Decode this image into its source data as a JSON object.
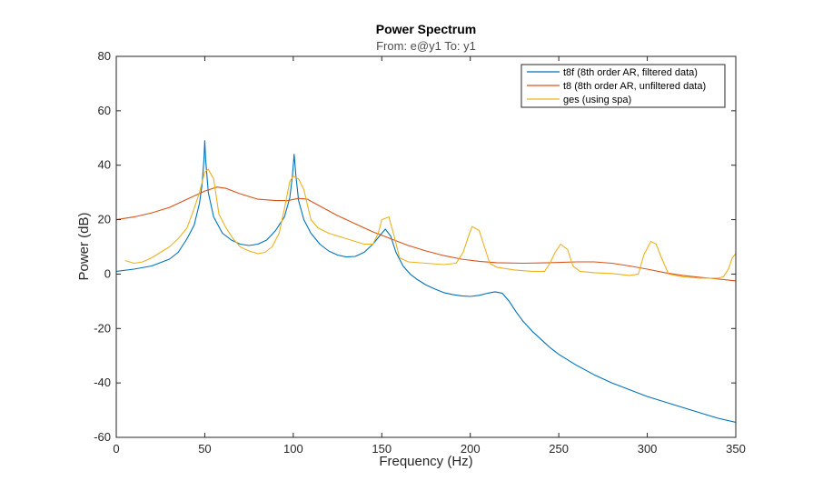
{
  "chart_data": {
    "type": "line",
    "title": "Power Spectrum",
    "subtitle": "From: e@y1  To: y1",
    "xlabel": "Frequency  (Hz)",
    "ylabel": "Power (dB)",
    "xlim": [
      0,
      350
    ],
    "ylim": [
      -60,
      80
    ],
    "xticks": [
      0,
      50,
      100,
      150,
      200,
      250,
      300,
      350
    ],
    "yticks": [
      -60,
      -40,
      -20,
      0,
      20,
      40,
      60,
      80
    ],
    "grid": false,
    "legend_position": "top-right",
    "series": [
      {
        "name": "t8f (8th order AR, filtered data)",
        "color": "#0072BD",
        "points": [
          [
            0,
            1
          ],
          [
            10,
            1.8
          ],
          [
            20,
            3
          ],
          [
            30,
            5.5
          ],
          [
            35,
            8
          ],
          [
            40,
            13
          ],
          [
            44,
            18
          ],
          [
            47,
            26
          ],
          [
            48.5,
            33
          ],
          [
            49.5,
            42
          ],
          [
            50,
            49
          ],
          [
            50.5,
            42
          ],
          [
            52,
            30
          ],
          [
            55,
            21
          ],
          [
            60,
            15
          ],
          [
            65,
            12.5
          ],
          [
            70,
            11
          ],
          [
            75,
            10.5
          ],
          [
            80,
            11
          ],
          [
            85,
            12.5
          ],
          [
            90,
            16
          ],
          [
            95,
            21
          ],
          [
            98,
            28
          ],
          [
            99.5,
            36
          ],
          [
            100.5,
            44
          ],
          [
            101.5,
            36
          ],
          [
            103,
            27
          ],
          [
            106,
            20
          ],
          [
            110,
            15
          ],
          [
            115,
            11
          ],
          [
            120,
            8.5
          ],
          [
            125,
            7
          ],
          [
            130,
            6.3
          ],
          [
            135,
            6.5
          ],
          [
            140,
            8
          ],
          [
            145,
            11
          ],
          [
            150,
            15
          ],
          [
            152,
            16.5
          ],
          [
            155,
            14
          ],
          [
            158,
            8
          ],
          [
            162,
            3
          ],
          [
            166,
            0
          ],
          [
            170,
            -2
          ],
          [
            175,
            -4
          ],
          [
            180,
            -5.5
          ],
          [
            185,
            -6.8
          ],
          [
            190,
            -7.5
          ],
          [
            195,
            -8
          ],
          [
            200,
            -8.2
          ],
          [
            205,
            -7.8
          ],
          [
            210,
            -7
          ],
          [
            214,
            -6.5
          ],
          [
            218,
            -7
          ],
          [
            222,
            -10
          ],
          [
            226,
            -14
          ],
          [
            230,
            -17.5
          ],
          [
            235,
            -21
          ],
          [
            240,
            -24
          ],
          [
            245,
            -27
          ],
          [
            250,
            -29.5
          ],
          [
            260,
            -33.5
          ],
          [
            270,
            -37
          ],
          [
            280,
            -40
          ],
          [
            290,
            -42.5
          ],
          [
            300,
            -45
          ],
          [
            310,
            -47
          ],
          [
            320,
            -49
          ],
          [
            330,
            -51
          ],
          [
            340,
            -53
          ],
          [
            350,
            -54.5
          ]
        ]
      },
      {
        "name": "t8 (8th order AR, unfiltered data)",
        "color": "#D95319",
        "points": [
          [
            0,
            20
          ],
          [
            10,
            21
          ],
          [
            20,
            22.5
          ],
          [
            30,
            24.5
          ],
          [
            40,
            27.5
          ],
          [
            50,
            30.5
          ],
          [
            57,
            32
          ],
          [
            62,
            31.5
          ],
          [
            70,
            29.5
          ],
          [
            80,
            27.5
          ],
          [
            90,
            27
          ],
          [
            97,
            27
          ],
          [
            103,
            27.8
          ],
          [
            108,
            27.5
          ],
          [
            115,
            25
          ],
          [
            125,
            21.5
          ],
          [
            135,
            18.5
          ],
          [
            145,
            15.5
          ],
          [
            155,
            13
          ],
          [
            165,
            10.5
          ],
          [
            175,
            8.5
          ],
          [
            185,
            6.8
          ],
          [
            195,
            5.5
          ],
          [
            205,
            4.7
          ],
          [
            215,
            4.2
          ],
          [
            230,
            4
          ],
          [
            245,
            4.2
          ],
          [
            260,
            4.5
          ],
          [
            270,
            4.5
          ],
          [
            280,
            4
          ],
          [
            290,
            3
          ],
          [
            300,
            1.8
          ],
          [
            310,
            0.5
          ],
          [
            320,
            -0.5
          ],
          [
            330,
            -1.2
          ],
          [
            340,
            -1.8
          ],
          [
            350,
            -2.5
          ]
        ]
      },
      {
        "name": "ges (using spa)",
        "color": "#EDB120",
        "points": [
          [
            5,
            5
          ],
          [
            10,
            4
          ],
          [
            15,
            4.5
          ],
          [
            20,
            6
          ],
          [
            25,
            8
          ],
          [
            30,
            10
          ],
          [
            35,
            13
          ],
          [
            40,
            17
          ],
          [
            44,
            24
          ],
          [
            47,
            30
          ],
          [
            50,
            37.5
          ],
          [
            52,
            38.5
          ],
          [
            55,
            35
          ],
          [
            58,
            22
          ],
          [
            62,
            17
          ],
          [
            66,
            13
          ],
          [
            70,
            10
          ],
          [
            75,
            8.5
          ],
          [
            80,
            7.5
          ],
          [
            84,
            8
          ],
          [
            88,
            10
          ],
          [
            92,
            15
          ],
          [
            95,
            24
          ],
          [
            98,
            34
          ],
          [
            100,
            36
          ],
          [
            103,
            35
          ],
          [
            106,
            31
          ],
          [
            110,
            20
          ],
          [
            114,
            17
          ],
          [
            120,
            15
          ],
          [
            130,
            13
          ],
          [
            140,
            11
          ],
          [
            145,
            11
          ],
          [
            148,
            15
          ],
          [
            150,
            20
          ],
          [
            154,
            21
          ],
          [
            157,
            14
          ],
          [
            160,
            6
          ],
          [
            165,
            4.5
          ],
          [
            175,
            4
          ],
          [
            185,
            3.5
          ],
          [
            192,
            4
          ],
          [
            196,
            8
          ],
          [
            199,
            14
          ],
          [
            201,
            17.5
          ],
          [
            205,
            16
          ],
          [
            208,
            10
          ],
          [
            211,
            4
          ],
          [
            215,
            2.5
          ],
          [
            225,
            1.5
          ],
          [
            235,
            1
          ],
          [
            242,
            1
          ],
          [
            245,
            4
          ],
          [
            248,
            8
          ],
          [
            251,
            11
          ],
          [
            255,
            9
          ],
          [
            258,
            3
          ],
          [
            262,
            1
          ],
          [
            270,
            0.5
          ],
          [
            280,
            0.2
          ],
          [
            290,
            -0.5
          ],
          [
            295,
            0
          ],
          [
            298,
            7
          ],
          [
            302,
            12
          ],
          [
            305,
            11
          ],
          [
            308,
            6
          ],
          [
            312,
            0
          ],
          [
            320,
            -1
          ],
          [
            330,
            -1.5
          ],
          [
            340,
            -1.5
          ],
          [
            343,
            -1
          ],
          [
            346,
            2
          ],
          [
            348,
            6
          ],
          [
            350,
            7.5
          ]
        ]
      }
    ]
  }
}
